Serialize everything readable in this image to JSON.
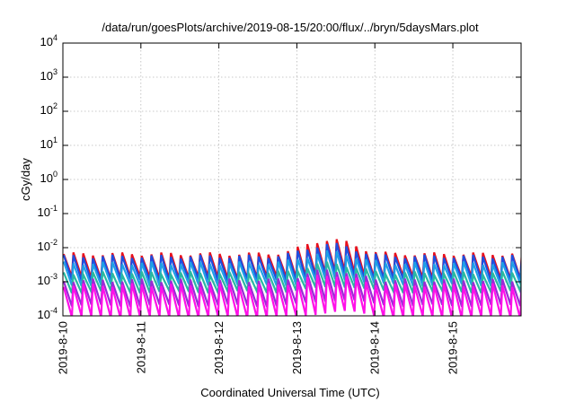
{
  "chart_data": {
    "type": "line",
    "title": "/data/run/goesPlots/archive/2019-08-15/20:00/flux/../bryn/5daysMars.plot",
    "xlabel": "Coordinated Universal Time (UTC)",
    "ylabel": "cGy/day",
    "yscale": "log",
    "ylim": [
      0.0001,
      10000
    ],
    "xlim": [
      "2019-08-10T00:00",
      "2019-08-15T21:00"
    ],
    "grid": true,
    "y_ticks": [
      {
        "base": "10",
        "exp": "-4"
      },
      {
        "base": "10",
        "exp": "-3"
      },
      {
        "base": "10",
        "exp": "-2"
      },
      {
        "base": "10",
        "exp": "-1"
      },
      {
        "base": "10",
        "exp": "0"
      },
      {
        "base": "10",
        "exp": "1"
      },
      {
        "base": "10",
        "exp": "2"
      },
      {
        "base": "10",
        "exp": "3"
      },
      {
        "base": "10",
        "exp": "4"
      }
    ],
    "x_ticks": [
      "2019-8-10",
      "2019-8-11",
      "2019-8-12",
      "2019-8-13",
      "2019-8-14",
      "2019-8-15"
    ],
    "sawtooth_period_hours": 3,
    "series": [
      {
        "color": "#e8101c",
        "peak": 0.0065,
        "trough": 0.0013,
        "peak_max": 0.017
      },
      {
        "color": "#1d4fe0",
        "peak": 0.0055,
        "trough": 0.0011,
        "peak_max": 0.0125
      },
      {
        "color": "#1fa0e6",
        "peak": 0.0035,
        "trough": 0.0008,
        "peak_max": 0.0075
      },
      {
        "color": "#2ab8a0",
        "peak": 0.0018,
        "trough": 0.0005,
        "peak_max": 0.0035
      },
      {
        "color": "#9a2bd6",
        "peak": 0.0011,
        "trough": 0.0002,
        "peak_max": 0.0022
      },
      {
        "color": "#ff10e8",
        "peak": 0.0008,
        "trough": 9e-05,
        "peak_max": 0.0016
      }
    ]
  }
}
